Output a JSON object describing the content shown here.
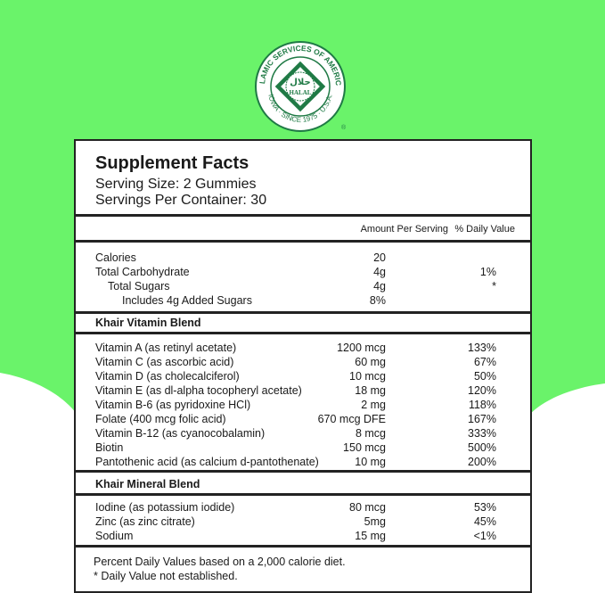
{
  "colors": {
    "background_green": "#6af36a",
    "logo_green": "#1f7a45",
    "border": "#222222"
  },
  "logo": {
    "text_top": "ISLAMIC SERVICES OF AMERICA",
    "text_bottom": "IOWA · SINCE 1975 · U.S.A.",
    "arabic": "حلال",
    "center": "HALAL",
    "registered": "®"
  },
  "facts": {
    "title": "Supplement Facts",
    "serving_size": "Serving Size: 2 Gummies",
    "servings_per_container": "Servings Per Container: 30",
    "col_amount": "Amount Per Serving",
    "col_dv": "% Daily Value",
    "basic": [
      {
        "label": "Calories",
        "amount": "20",
        "dv": ""
      },
      {
        "label": "Total Carbohydrate",
        "amount": "4g",
        "dv": "1%"
      },
      {
        "label": "Total Sugars",
        "amount": "4g",
        "dv": "*"
      },
      {
        "label": "Includes 4g Added Sugars",
        "amount": "8%",
        "dv": ""
      }
    ],
    "vitamin_blend": "Khair Vitamin Blend",
    "vitamins": [
      {
        "label": "Vitamin A (as retinyl acetate)",
        "amount": "1200 mcg",
        "dv": "133%"
      },
      {
        "label": "Vitamin C (as ascorbic acid)",
        "amount": "60 mg",
        "dv": "67%"
      },
      {
        "label": "Vitamin D (as cholecalciferol)",
        "amount": "10 mcg",
        "dv": "50%"
      },
      {
        "label": "Vitamin E (as dl-alpha tocopheryl acetate)",
        "amount": "18 mg",
        "dv": "120%"
      },
      {
        "label": "Vitamin B-6 (as pyridoxine HCl)",
        "amount": "2 mg",
        "dv": "118%"
      },
      {
        "label": "Folate (400 mcg folic acid)",
        "amount": "670 mcg DFE",
        "dv": "167%"
      },
      {
        "label": "Vitamin B-12 (as cyanocobalamin)",
        "amount": "8 mcg",
        "dv": "333%"
      },
      {
        "label": "Biotin",
        "amount": "150 mcg",
        "dv": "500%"
      },
      {
        "label": "Pantothenic acid (as calcium d-pantothenate)",
        "amount": "10 mg",
        "dv": "200%"
      }
    ],
    "mineral_blend": "Khair Mineral Blend",
    "minerals": [
      {
        "label": "Iodine (as potassium iodide)",
        "amount": "80 mcg",
        "dv": "53%"
      },
      {
        "label": "Zinc (as zinc citrate)",
        "amount": "5mg",
        "dv": "45%"
      },
      {
        "label": "Sodium",
        "amount": "15 mg",
        "dv": "<1%"
      }
    ],
    "footnote_1": "Percent Daily Values based on a 2,000 calorie diet.",
    "footnote_2": "* Daily Value not established."
  }
}
